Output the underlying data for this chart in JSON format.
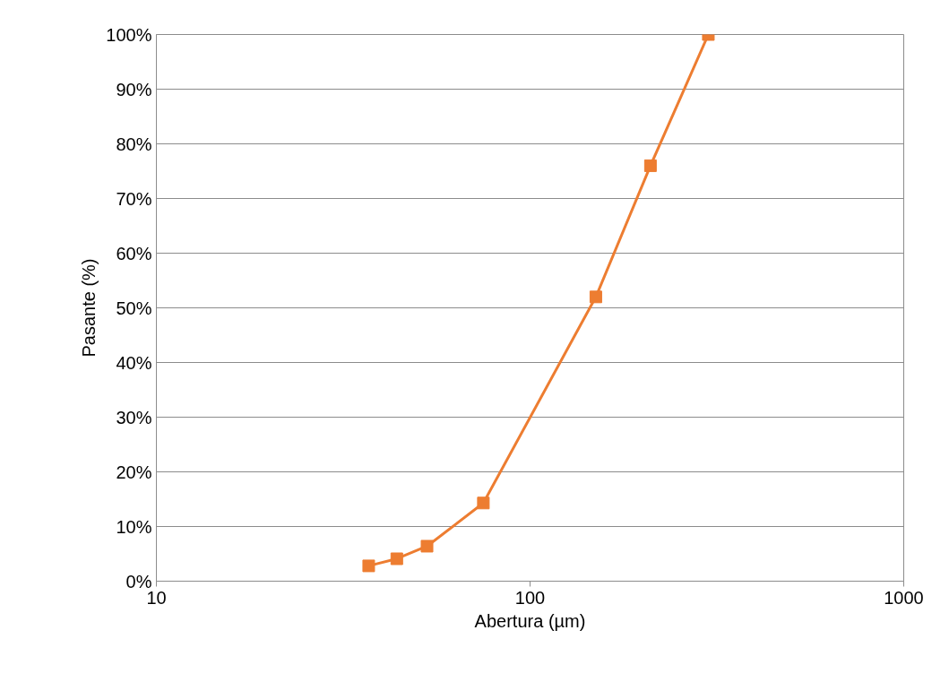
{
  "chart_data": {
    "type": "line",
    "xlabel": "Abertura (µm)",
    "ylabel": "Pasante (%)",
    "x": [
      37,
      44,
      53,
      75,
      150,
      210,
      300
    ],
    "series": [
      {
        "color": "#ed7d31",
        "values": [
          2.8,
          4.1,
          6.4,
          14.3,
          52,
          76,
          100
        ]
      }
    ],
    "log": "x",
    "xlim": [
      10,
      1000
    ],
    "xticks": [
      10,
      100,
      1000
    ],
    "ylim": [
      0,
      100
    ],
    "yticks": [
      {
        "value": 0,
        "label": "0%"
      },
      {
        "value": 10,
        "label": "10%"
      },
      {
        "value": 20,
        "label": "20%"
      },
      {
        "value": 30,
        "label": "30%"
      },
      {
        "value": 40,
        "label": "40%"
      },
      {
        "value": 50,
        "label": "50%"
      },
      {
        "value": 60,
        "label": "60%"
      },
      {
        "value": 70,
        "label": "70%"
      },
      {
        "value": 80,
        "label": "80%"
      },
      {
        "value": 90,
        "label": "90%"
      },
      {
        "value": 100,
        "label": "100%"
      }
    ],
    "grid": "y",
    "marker": "square",
    "line_style": "solid"
  }
}
